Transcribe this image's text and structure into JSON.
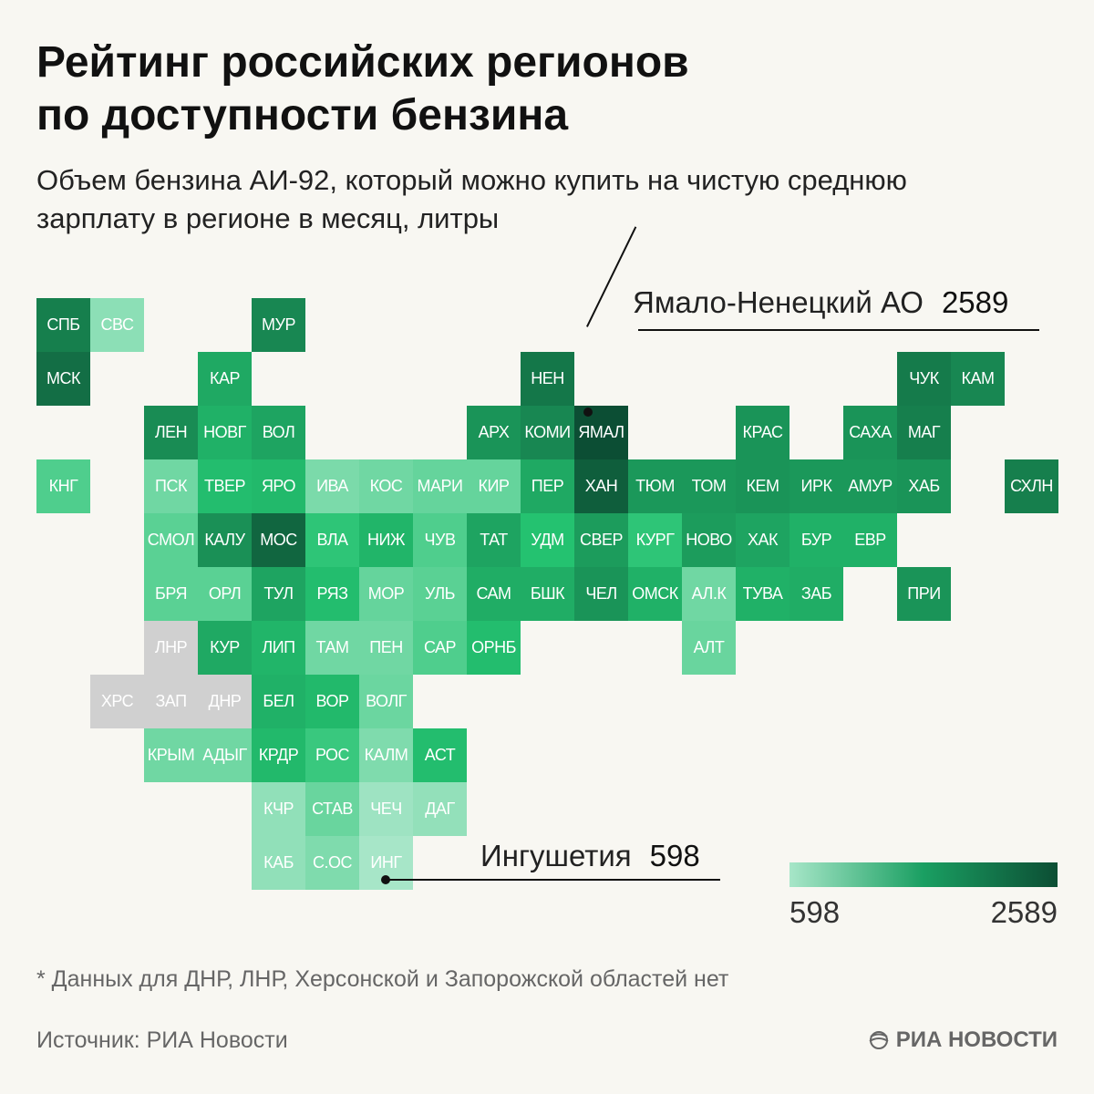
{
  "title": [
    "Рейтинг российских регионов",
    "по доступности бензина"
  ],
  "subtitle": [
    "Объем бензина АИ-92, который можно купить на чистую среднюю",
    "зарплату в регионе в месяц, литры"
  ],
  "chart_data": {
    "type": "heatmap",
    "layout": "tile-grid-map",
    "value_range": [
      598,
      2589
    ],
    "colors": {
      "low": "#a7e6c8",
      "mid": "#24c270",
      "high": "#0c4e34",
      "no_data": "#d0d0d0"
    },
    "regions": [
      {
        "label": "СПБ",
        "col": 0,
        "row": 0,
        "value": 2000
      },
      {
        "label": "СВС",
        "col": 1,
        "row": 0,
        "value": 720
      },
      {
        "label": "МУР",
        "col": 4,
        "row": 0,
        "value": 1900
      },
      {
        "label": "МСК",
        "col": 0,
        "row": 1,
        "value": 2200
      },
      {
        "label": "КАР",
        "col": 3,
        "row": 1,
        "value": 1500
      },
      {
        "label": "НЕН",
        "col": 9,
        "row": 1,
        "value": 2100
      },
      {
        "label": "ЧУК",
        "col": 16,
        "row": 1,
        "value": 2050
      },
      {
        "label": "КАМ",
        "col": 17,
        "row": 1,
        "value": 1900
      },
      {
        "label": "ЛЕН",
        "col": 2,
        "row": 2,
        "value": 1850
      },
      {
        "label": "НОВГ",
        "col": 3,
        "row": 2,
        "value": 1400
      },
      {
        "label": "ВОЛ",
        "col": 4,
        "row": 2,
        "value": 1550
      },
      {
        "label": "АРХ",
        "col": 8,
        "row": 2,
        "value": 1750
      },
      {
        "label": "КОМИ",
        "col": 9,
        "row": 2,
        "value": 1900
      },
      {
        "label": "ЯМАЛ",
        "col": 10,
        "row": 2,
        "value": 2589
      },
      {
        "label": "КРАС",
        "col": 13,
        "row": 2,
        "value": 1750
      },
      {
        "label": "САХА",
        "col": 15,
        "row": 2,
        "value": 1750
      },
      {
        "label": "МАГ",
        "col": 16,
        "row": 2,
        "value": 2000
      },
      {
        "label": "КНГ",
        "col": 0,
        "row": 3,
        "value": 1000
      },
      {
        "label": "ПСК",
        "col": 2,
        "row": 3,
        "value": 850
      },
      {
        "label": "ТВЕР",
        "col": 3,
        "row": 3,
        "value": 1250
      },
      {
        "label": "ЯРО",
        "col": 4,
        "row": 3,
        "value": 1300
      },
      {
        "label": "ИВА",
        "col": 5,
        "row": 3,
        "value": 800
      },
      {
        "label": "КОС",
        "col": 6,
        "row": 3,
        "value": 850
      },
      {
        "label": "МАРИ",
        "col": 7,
        "row": 3,
        "value": 900
      },
      {
        "label": "КИР",
        "col": 8,
        "row": 3,
        "value": 900
      },
      {
        "label": "ПЕР",
        "col": 9,
        "row": 3,
        "value": 1500
      },
      {
        "label": "ХАН",
        "col": 10,
        "row": 3,
        "value": 2400
      },
      {
        "label": "ТЮМ",
        "col": 11,
        "row": 3,
        "value": 1700
      },
      {
        "label": "ТОМ",
        "col": 12,
        "row": 3,
        "value": 1700
      },
      {
        "label": "КЕМ",
        "col": 13,
        "row": 3,
        "value": 1750
      },
      {
        "label": "ИРК",
        "col": 14,
        "row": 3,
        "value": 1700
      },
      {
        "label": "АМУР",
        "col": 15,
        "row": 3,
        "value": 1700
      },
      {
        "label": "ХАБ",
        "col": 16,
        "row": 3,
        "value": 1750
      },
      {
        "label": "СХЛН",
        "col": 18,
        "row": 3,
        "value": 2000
      },
      {
        "label": "СМОЛ",
        "col": 2,
        "row": 4,
        "value": 950
      },
      {
        "label": "КАЛУ",
        "col": 3,
        "row": 4,
        "value": 1800
      },
      {
        "label": "МОС",
        "col": 4,
        "row": 4,
        "value": 2300
      },
      {
        "label": "ВЛА",
        "col": 5,
        "row": 4,
        "value": 1150
      },
      {
        "label": "НИЖ",
        "col": 6,
        "row": 4,
        "value": 1350
      },
      {
        "label": "ЧУВ",
        "col": 7,
        "row": 4,
        "value": 1000
      },
      {
        "label": "ТАТ",
        "col": 8,
        "row": 4,
        "value": 1550
      },
      {
        "label": "УДМ",
        "col": 9,
        "row": 4,
        "value": 1200
      },
      {
        "label": "СВЕР",
        "col": 10,
        "row": 4,
        "value": 1650
      },
      {
        "label": "КУРГ",
        "col": 11,
        "row": 4,
        "value": 1150
      },
      {
        "label": "НОВО",
        "col": 12,
        "row": 4,
        "value": 1650
      },
      {
        "label": "ХАК",
        "col": 13,
        "row": 4,
        "value": 1550
      },
      {
        "label": "БУР",
        "col": 14,
        "row": 4,
        "value": 1400
      },
      {
        "label": "ЕВР",
        "col": 15,
        "row": 4,
        "value": 1400
      },
      {
        "label": "БРЯ",
        "col": 2,
        "row": 5,
        "value": 950
      },
      {
        "label": "ОРЛ",
        "col": 3,
        "row": 5,
        "value": 950
      },
      {
        "label": "ТУЛ",
        "col": 4,
        "row": 5,
        "value": 1550
      },
      {
        "label": "РЯЗ",
        "col": 5,
        "row": 5,
        "value": 1250
      },
      {
        "label": "МОР",
        "col": 6,
        "row": 5,
        "value": 900
      },
      {
        "label": "УЛЬ",
        "col": 7,
        "row": 5,
        "value": 950
      },
      {
        "label": "САМ",
        "col": 8,
        "row": 5,
        "value": 1450
      },
      {
        "label": "БШК",
        "col": 9,
        "row": 5,
        "value": 1450
      },
      {
        "label": "ЧЕЛ",
        "col": 10,
        "row": 5,
        "value": 1750
      },
      {
        "label": "ОМСК",
        "col": 11,
        "row": 5,
        "value": 1400
      },
      {
        "label": "АЛ.К",
        "col": 12,
        "row": 5,
        "value": 850
      },
      {
        "label": "ТУВА",
        "col": 13,
        "row": 5,
        "value": 1400
      },
      {
        "label": "ЗАБ",
        "col": 14,
        "row": 5,
        "value": 1450
      },
      {
        "label": "ПРИ",
        "col": 16,
        "row": 5,
        "value": 1750
      },
      {
        "label": "ЛНР",
        "col": 2,
        "row": 6,
        "value": null
      },
      {
        "label": "КУР",
        "col": 3,
        "row": 6,
        "value": 1500
      },
      {
        "label": "ЛИП",
        "col": 4,
        "row": 6,
        "value": 1350
      },
      {
        "label": "ТАМ",
        "col": 5,
        "row": 6,
        "value": 850
      },
      {
        "label": "ПЕН",
        "col": 6,
        "row": 6,
        "value": 850
      },
      {
        "label": "САР",
        "col": 7,
        "row": 6,
        "value": 1000
      },
      {
        "label": "ОРНБ",
        "col": 8,
        "row": 6,
        "value": 1250
      },
      {
        "label": "АЛТ",
        "col": 12,
        "row": 6,
        "value": 880
      },
      {
        "label": "ХРС",
        "col": 1,
        "row": 7,
        "value": null
      },
      {
        "label": "ЗАП",
        "col": 2,
        "row": 7,
        "value": null
      },
      {
        "label": "ДНР",
        "col": 3,
        "row": 7,
        "value": null
      },
      {
        "label": "БЕЛ",
        "col": 4,
        "row": 7,
        "value": 1400
      },
      {
        "label": "ВОР",
        "col": 5,
        "row": 7,
        "value": 1300
      },
      {
        "label": "ВОЛГ",
        "col": 6,
        "row": 7,
        "value": 870
      },
      {
        "label": "КРЫМ",
        "col": 2,
        "row": 8,
        "value": 850
      },
      {
        "label": "АДЫГ",
        "col": 3,
        "row": 8,
        "value": 850
      },
      {
        "label": "КРДР",
        "col": 4,
        "row": 8,
        "value": 1300
      },
      {
        "label": "РОС",
        "col": 5,
        "row": 8,
        "value": 1100
      },
      {
        "label": "КАЛМ",
        "col": 6,
        "row": 8,
        "value": 780
      },
      {
        "label": "АСТ",
        "col": 7,
        "row": 8,
        "value": 1250
      },
      {
        "label": "КЧР",
        "col": 4,
        "row": 9,
        "value": 700
      },
      {
        "label": "СТАВ",
        "col": 5,
        "row": 9,
        "value": 880
      },
      {
        "label": "ЧЕЧ",
        "col": 6,
        "row": 9,
        "value": 640
      },
      {
        "label": "ДАГ",
        "col": 7,
        "row": 9,
        "value": 690
      },
      {
        "label": "КАБ",
        "col": 4,
        "row": 10,
        "value": 700
      },
      {
        "label": "С.ОС",
        "col": 5,
        "row": 10,
        "value": 780
      },
      {
        "label": "ИНГ",
        "col": 6,
        "row": 10,
        "value": 598
      }
    ],
    "annotations": [
      {
        "label": "Ямало-Ненецкий АО",
        "value": "2589",
        "region": "ЯМАЛ"
      },
      {
        "label": "Ингушетия",
        "value": "598",
        "region": "ИНГ"
      }
    ],
    "legend": {
      "min_label": "598",
      "max_label": "2589"
    }
  },
  "footnote": "* Данных для ДНР, ЛНР, Херсонской и Запорожской областей нет",
  "source": "Источник: РИА Новости",
  "logo_text": "РИА НОВОСТИ"
}
